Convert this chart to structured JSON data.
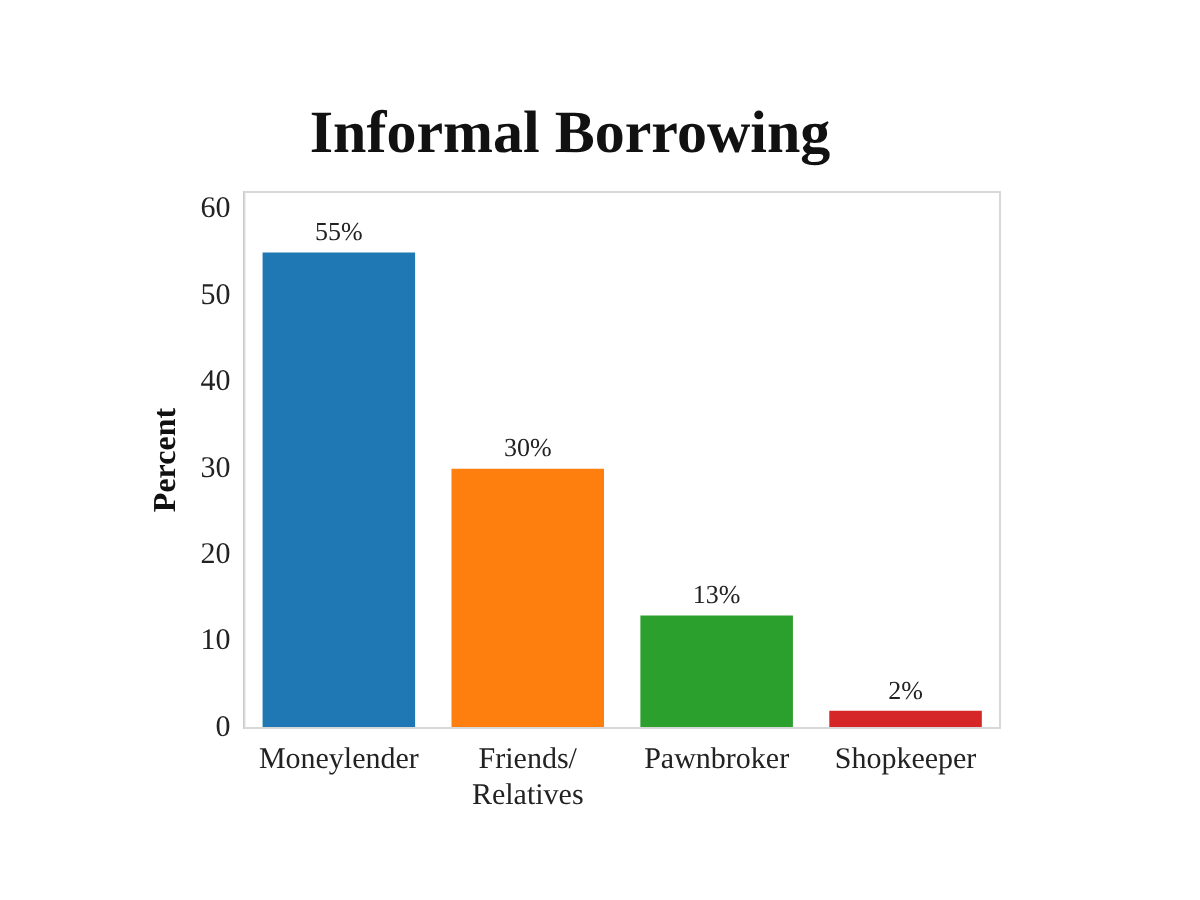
{
  "chart_data": {
    "type": "bar",
    "title": "Informal Borrowing",
    "ylabel": "Percent",
    "categories": [
      "Moneylender",
      "Friends/ Relatives",
      "Pawnbroker",
      "Shopkeeper"
    ],
    "values": [
      55,
      30,
      13,
      2
    ],
    "colors": [
      "#1f77b4",
      "#ff7f0e",
      "#2ca02c",
      "#d62728"
    ],
    "value_labels": [
      "55%",
      "30%",
      "13%",
      "2%"
    ],
    "ylim": [
      0,
      62
    ],
    "yticks": [
      0,
      10,
      20,
      30,
      40,
      50,
      60
    ],
    "grid": false,
    "legend": false
  }
}
